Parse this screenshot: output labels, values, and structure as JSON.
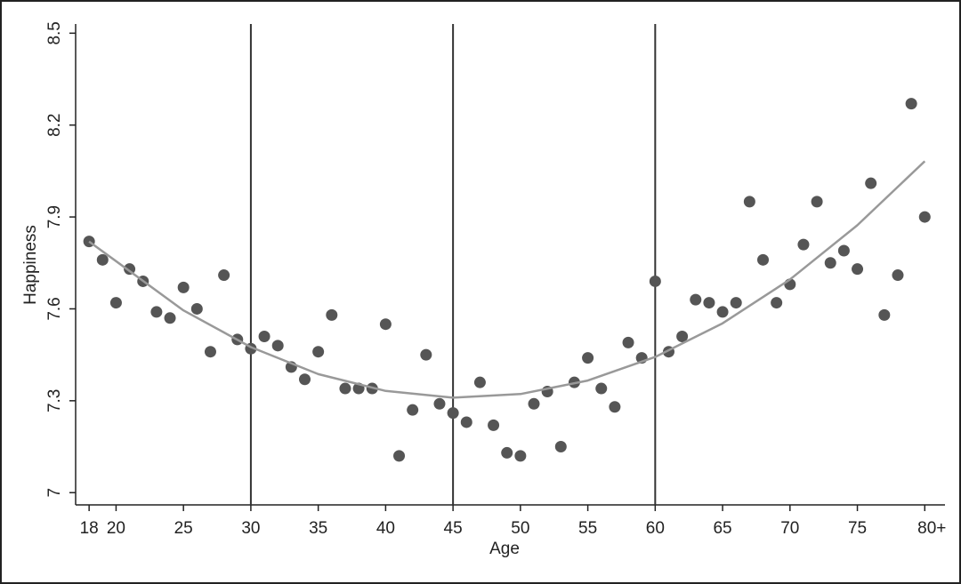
{
  "chart_data": {
    "type": "scatter",
    "x_label": "Age",
    "y_label": "Happiness",
    "xlim": [
      17,
      81.5
    ],
    "ylim": [
      6.96,
      8.53
    ],
    "xticks": [
      18,
      20,
      25,
      30,
      35,
      40,
      45,
      50,
      55,
      60,
      65,
      70,
      75,
      {
        "value": 80,
        "label": "80+"
      }
    ],
    "yticks": [
      7,
      7.3,
      7.6,
      7.9,
      8.2,
      8.5
    ],
    "vlines": [
      30,
      45,
      60
    ],
    "vline_color": "#333333",
    "series": [
      {
        "type": "scatter",
        "color": "#555555",
        "x": [
          18,
          19,
          20,
          21,
          22,
          23,
          24,
          25,
          26,
          27,
          28,
          29,
          30,
          31,
          32,
          33,
          34,
          35,
          36,
          37,
          38,
          39,
          40,
          41,
          42,
          43,
          44,
          45,
          46,
          47,
          48,
          49,
          50,
          51,
          52,
          53,
          54,
          55,
          56,
          57,
          58,
          59,
          60,
          61,
          62,
          63,
          64,
          65,
          66,
          67,
          68,
          69,
          70,
          71,
          72,
          73,
          74,
          75,
          76,
          77,
          78,
          79,
          80
        ],
        "values": [
          7.82,
          7.76,
          7.62,
          7.73,
          7.69,
          7.59,
          7.57,
          7.67,
          7.6,
          7.46,
          7.71,
          7.5,
          7.47,
          7.51,
          7.48,
          7.41,
          7.37,
          7.46,
          7.58,
          7.34,
          7.34,
          7.34,
          7.55,
          7.12,
          7.27,
          7.45,
          7.29,
          7.26,
          7.23,
          7.36,
          7.22,
          7.13,
          7.12,
          7.29,
          7.33,
          7.15,
          7.36,
          7.44,
          7.34,
          7.28,
          7.49,
          7.44,
          7.69,
          7.46,
          7.51,
          7.63,
          7.62,
          7.59,
          7.62,
          7.95,
          7.76,
          7.62,
          7.68,
          7.81,
          7.95,
          7.75,
          7.79,
          7.73,
          8.01,
          7.58,
          7.71,
          8.27,
          7.9
        ]
      },
      {
        "type": "line",
        "color": "#999999",
        "x": [
          18,
          25,
          30,
          35,
          40,
          45,
          50,
          55,
          60,
          65,
          70,
          75,
          80
        ],
        "values": [
          7.82,
          7.595,
          7.475,
          7.387,
          7.332,
          7.31,
          7.322,
          7.366,
          7.443,
          7.553,
          7.696,
          7.873,
          8.082
        ]
      }
    ]
  }
}
